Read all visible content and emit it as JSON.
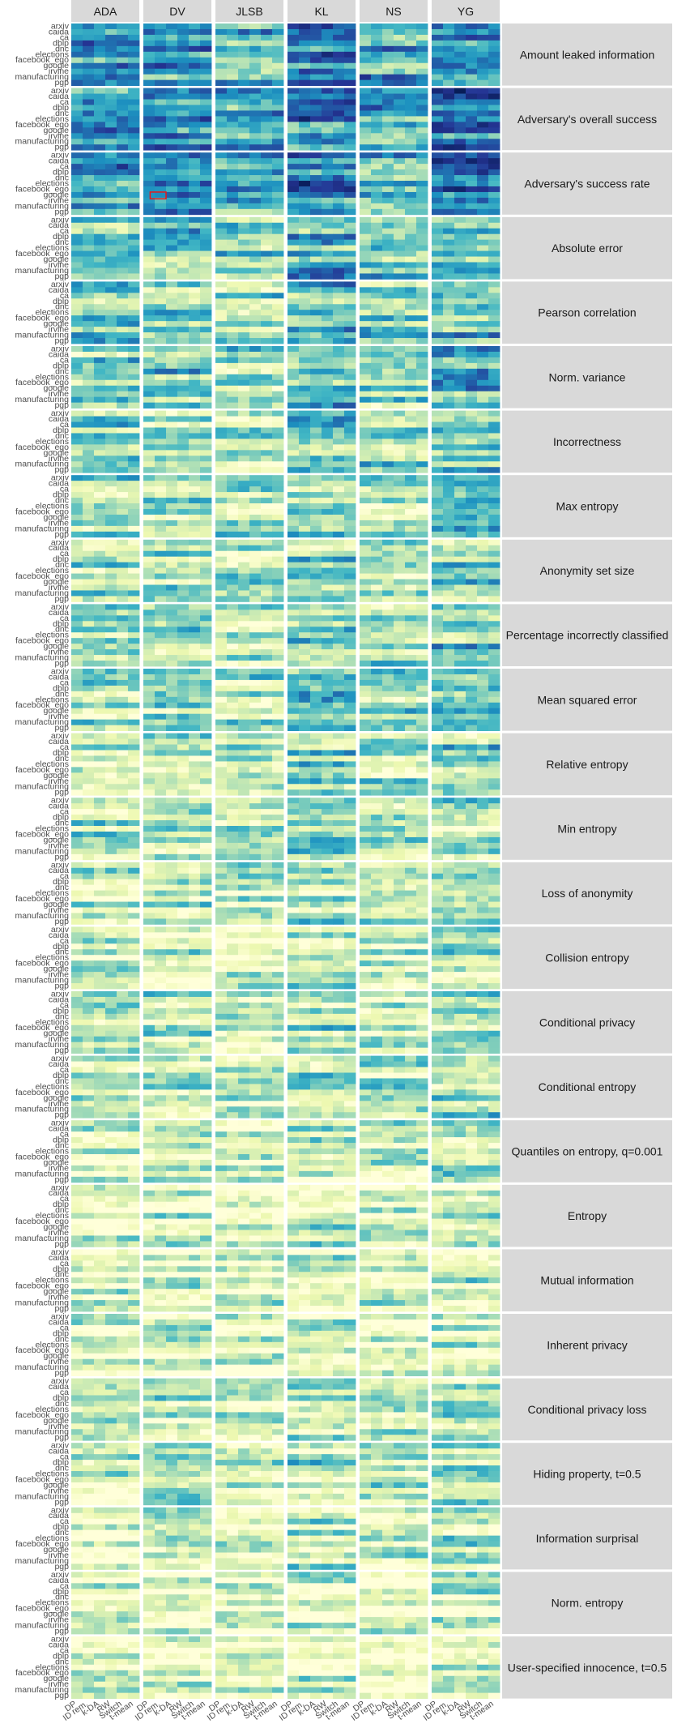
{
  "chart_data": {
    "type": "heatmap",
    "title": "",
    "xlabel": "",
    "ylabel": "",
    "column_facets": [
      "ADA",
      "DV",
      "JLSB",
      "KL",
      "NS",
      "YG"
    ],
    "row_facets": [
      "Amount leaked information",
      "Adversary's overall success",
      "Adversary's success rate",
      "Absolute error",
      "Pearson correlation",
      "Norm. variance",
      "Incorrectness",
      "Max entropy",
      "Anonymity set size",
      "Percentage incorrectly classified",
      "Mean squared error",
      "Relative entropy",
      "Min entropy",
      "Loss of anonymity",
      "Collision entropy",
      "Conditional privacy",
      "Conditional entropy",
      "Quantiles on entropy, q=0.001",
      "Entropy",
      "Mutual information",
      "Inherent privacy",
      "Conditional privacy loss",
      "Hiding property, t=0.5",
      "Information surprisal",
      "Norm. entropy",
      "User-specified innocence, t=0.5"
    ],
    "x_categories": [
      "DP",
      "ID rem.",
      "k-DA",
      "RW",
      "Switch",
      "t-mean"
    ],
    "y_categories": [
      "arxiv",
      "caida",
      "ca",
      "dblp",
      "dnc",
      "elections",
      "facebook_ego",
      "google",
      "irvine",
      "manufacturing",
      "pgp"
    ],
    "color_scale": [
      "#ffffd9",
      "#edf8b1",
      "#c7e9b4",
      "#7fcdbb",
      "#41b6c4",
      "#1d91c0",
      "#225ea8",
      "#253494",
      "#081d58"
    ],
    "value_range": [
      0,
      1
    ],
    "highlight": {
      "row_facet": "Adversary's success rate",
      "column_facet": "DV",
      "row": "google",
      "columns": [
        "DP",
        "ID rem."
      ],
      "color": "#e31a1c"
    },
    "intensity_by_metric": [
      0.78,
      0.78,
      0.78,
      0.62,
      0.58,
      0.56,
      0.52,
      0.5,
      0.5,
      0.5,
      0.5,
      0.46,
      0.44,
      0.42,
      0.4,
      0.42,
      0.42,
      0.34,
      0.34,
      0.34,
      0.32,
      0.42,
      0.4,
      0.36,
      0.32,
      0.3
    ],
    "intensity_by_method": [
      0.55,
      0.6,
      0.45,
      0.75,
      0.55,
      0.8
    ],
    "grid": false
  }
}
